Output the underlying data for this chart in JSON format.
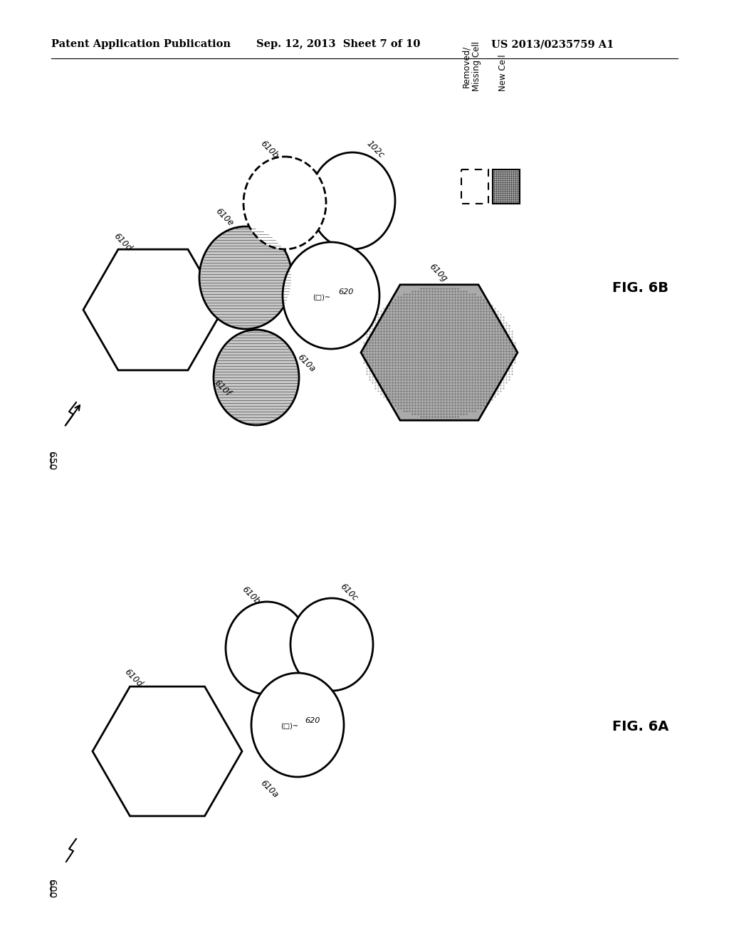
{
  "header_left": "Patent Application Publication",
  "header_mid": "Sep. 12, 2013  Sheet 7 of 10",
  "header_right": "US 2013/0235759 A1",
  "fig6b_label": "FIG. 6B",
  "fig6a_label": "FIG. 6A",
  "diagram_600_label": "600",
  "diagram_650_label": "650",
  "background_color": "#ffffff",
  "gray_light": "#c8c8c8",
  "gray_dark": "#999999",
  "gray_new_cell": "#aaaaaa"
}
